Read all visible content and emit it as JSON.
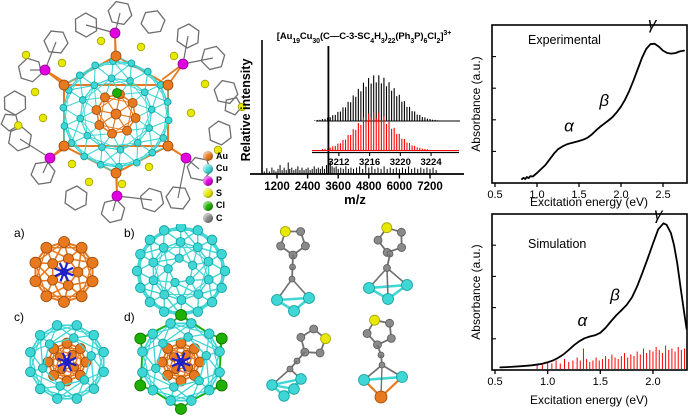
{
  "colors": {
    "au": "#E8791E",
    "cu": "#3FD6D6",
    "p": "#E000E0",
    "s": "#E8E800",
    "cl": "#1FAF00",
    "c": "#8A8A8A",
    "core_blue": "#2020C8",
    "series_red": "#FF0000",
    "series_black": "#000000"
  },
  "panel_a": {
    "legend": [
      {
        "label": "Au",
        "color_key": "au"
      },
      {
        "label": "Cu",
        "color_key": "cu"
      },
      {
        "label": "P",
        "color_key": "p"
      },
      {
        "label": "S",
        "color_key": "s"
      },
      {
        "label": "Cl",
        "color_key": "cl"
      },
      {
        "label": "C",
        "color_key": "c"
      }
    ]
  },
  "panel_labels": {
    "a": "a)",
    "b": "b)",
    "c": "c)",
    "d": "d)"
  },
  "mass_spec": {
    "formula_plain": "[Au19Cu30(C—C-3-SC4H3)22(Ph3P)6Cl2]3+",
    "formula_segments": [
      {
        "t": "txt",
        "v": "[Au"
      },
      {
        "t": "sub",
        "v": "19"
      },
      {
        "t": "txt",
        "v": "Cu"
      },
      {
        "t": "sub",
        "v": "30"
      },
      {
        "t": "txt",
        "v": "(C—C-3-SC"
      },
      {
        "t": "sub",
        "v": "4"
      },
      {
        "t": "txt",
        "v": "H"
      },
      {
        "t": "sub",
        "v": "3"
      },
      {
        "t": "txt",
        "v": ")"
      },
      {
        "t": "sub",
        "v": "22"
      },
      {
        "t": "txt",
        "v": "(Ph"
      },
      {
        "t": "sub",
        "v": "3"
      },
      {
        "t": "txt",
        "v": "P)"
      },
      {
        "t": "sub",
        "v": "6"
      },
      {
        "t": "txt",
        "v": "Cl"
      },
      {
        "t": "sub",
        "v": "2"
      },
      {
        "t": "txt",
        "v": "]"
      },
      {
        "t": "sup",
        "v": "3+"
      }
    ]
  },
  "chart_data": [
    {
      "type": "bar",
      "xlabel": "m/z",
      "ylabel": "Relative intensity",
      "xticks": [
        "1200",
        "2400",
        "3600",
        "4800",
        "6000",
        "7200"
      ],
      "xlim": [
        600,
        7800
      ],
      "main_peak": {
        "mz": 3216,
        "rel": 1.0
      },
      "noise_peaks": [
        [
          700,
          0.02
        ],
        [
          800,
          0.045
        ],
        [
          900,
          0.02
        ],
        [
          1000,
          0.05
        ],
        [
          1080,
          0.03
        ],
        [
          1160,
          0.02
        ],
        [
          1240,
          0.04
        ],
        [
          1320,
          0.07
        ],
        [
          1400,
          0.03
        ],
        [
          1480,
          0.05
        ],
        [
          1560,
          0.03
        ],
        [
          1640,
          0.09
        ],
        [
          1700,
          0.04
        ],
        [
          1780,
          0.05
        ],
        [
          1860,
          0.03
        ],
        [
          1940,
          0.04
        ],
        [
          2020,
          0.06
        ],
        [
          2100,
          0.03
        ],
        [
          2180,
          0.05
        ],
        [
          2260,
          0.03
        ],
        [
          2340,
          0.04
        ],
        [
          2420,
          0.05
        ],
        [
          2500,
          0.03
        ],
        [
          2580,
          0.04
        ],
        [
          2660,
          0.06
        ],
        [
          2740,
          0.04
        ],
        [
          2820,
          0.05
        ],
        [
          2900,
          0.04
        ],
        [
          2980,
          0.06
        ],
        [
          3060,
          0.04
        ],
        [
          3140,
          0.07
        ],
        [
          3290,
          0.1
        ],
        [
          3360,
          0.06
        ],
        [
          3440,
          0.05
        ],
        [
          3520,
          0.06
        ],
        [
          3600,
          0.04
        ],
        [
          3700,
          0.05
        ],
        [
          3800,
          0.04
        ],
        [
          3900,
          0.06
        ],
        [
          4000,
          0.04
        ],
        [
          4100,
          0.05
        ],
        [
          4200,
          0.04
        ],
        [
          4320,
          0.05
        ],
        [
          4440,
          0.06
        ],
        [
          4560,
          0.04
        ],
        [
          4680,
          0.07
        ],
        [
          4800,
          0.05
        ],
        [
          4920,
          0.06
        ],
        [
          5040,
          0.04
        ],
        [
          5160,
          0.05
        ],
        [
          5280,
          0.04
        ],
        [
          5400,
          0.06
        ],
        [
          5520,
          0.04
        ],
        [
          5640,
          0.05
        ],
        [
          5760,
          0.04
        ],
        [
          5880,
          0.05
        ],
        [
          6000,
          0.04
        ],
        [
          6120,
          0.05
        ],
        [
          6240,
          0.04
        ],
        [
          6360,
          0.06
        ],
        [
          6480,
          0.04
        ],
        [
          6600,
          0.05
        ],
        [
          6720,
          0.04
        ],
        [
          6840,
          0.05
        ],
        [
          6960,
          0.04
        ],
        [
          7080,
          0.05
        ],
        [
          7200,
          0.04
        ],
        [
          7320,
          0.05
        ],
        [
          7440,
          0.03
        ]
      ],
      "inset": {
        "xticks": [
          "3212",
          "3216",
          "3220",
          "3224"
        ],
        "xlim": [
          3208,
          3227
        ],
        "series": [
          {
            "color": "#000000",
            "center": 3216.9,
            "sigma": 2.8,
            "spacing": 0.3333
          },
          {
            "color": "#FF0000",
            "center": 3216.6,
            "sigma": 2.5,
            "spacing": 0.3333
          }
        ]
      }
    },
    {
      "type": "line",
      "title": "Experimental",
      "xlabel": "Excitation energy (eV)",
      "ylabel": "Absorbance (a.u.)",
      "xticks": [
        "0.5",
        "1.0",
        "1.5",
        "2.0",
        "2.5"
      ],
      "xlim": [
        0.5,
        2.78
      ],
      "points": [
        [
          0.82,
          0.012
        ],
        [
          0.84,
          0.02
        ],
        [
          0.86,
          0.012
        ],
        [
          0.88,
          0.025
        ],
        [
          0.9,
          0.018
        ],
        [
          0.92,
          0.03
        ],
        [
          0.95,
          0.028
        ],
        [
          1.0,
          0.05
        ],
        [
          1.05,
          0.075
        ],
        [
          1.1,
          0.1
        ],
        [
          1.15,
          0.135
        ],
        [
          1.2,
          0.17
        ],
        [
          1.25,
          0.198
        ],
        [
          1.3,
          0.215
        ],
        [
          1.35,
          0.228
        ],
        [
          1.4,
          0.236
        ],
        [
          1.45,
          0.243
        ],
        [
          1.5,
          0.25
        ],
        [
          1.55,
          0.258
        ],
        [
          1.6,
          0.27
        ],
        [
          1.65,
          0.29
        ],
        [
          1.7,
          0.315
        ],
        [
          1.75,
          0.338
        ],
        [
          1.8,
          0.358
        ],
        [
          1.85,
          0.378
        ],
        [
          1.9,
          0.4
        ],
        [
          1.95,
          0.43
        ],
        [
          2.0,
          0.465
        ],
        [
          2.05,
          0.51
        ],
        [
          2.1,
          0.565
        ],
        [
          2.15,
          0.63
        ],
        [
          2.2,
          0.7
        ],
        [
          2.25,
          0.77
        ],
        [
          2.3,
          0.825
        ],
        [
          2.35,
          0.855
        ],
        [
          2.4,
          0.858
        ],
        [
          2.45,
          0.84
        ],
        [
          2.5,
          0.815
        ],
        [
          2.55,
          0.8
        ],
        [
          2.6,
          0.796
        ],
        [
          2.65,
          0.8
        ],
        [
          2.7,
          0.81
        ],
        [
          2.75,
          0.815
        ]
      ],
      "annotations": [
        {
          "text": "α",
          "x": 1.38,
          "y": 0.31
        },
        {
          "text": "β",
          "x": 1.8,
          "y": 0.47
        },
        {
          "text": "γ",
          "x": 2.37,
          "y": 0.95
        }
      ]
    },
    {
      "type": "line",
      "title": "Simulation",
      "xlabel": "Excitation energy (eV)",
      "ylabel": "Absorbance (a.u.)",
      "xticks": [
        "0.5",
        "1.0",
        "1.5",
        "2.0"
      ],
      "xlim": [
        0.5,
        2.32
      ],
      "points": [
        [
          0.55,
          0.004
        ],
        [
          0.65,
          0.007
        ],
        [
          0.75,
          0.012
        ],
        [
          0.85,
          0.018
        ],
        [
          0.95,
          0.028
        ],
        [
          1.0,
          0.038
        ],
        [
          1.05,
          0.05
        ],
        [
          1.1,
          0.068
        ],
        [
          1.15,
          0.09
        ],
        [
          1.2,
          0.12
        ],
        [
          1.25,
          0.152
        ],
        [
          1.3,
          0.178
        ],
        [
          1.35,
          0.198
        ],
        [
          1.4,
          0.21
        ],
        [
          1.45,
          0.218
        ],
        [
          1.5,
          0.235
        ],
        [
          1.55,
          0.268
        ],
        [
          1.6,
          0.31
        ],
        [
          1.65,
          0.35
        ],
        [
          1.7,
          0.385
        ],
        [
          1.75,
          0.42
        ],
        [
          1.8,
          0.47
        ],
        [
          1.85,
          0.545
        ],
        [
          1.9,
          0.635
        ],
        [
          1.95,
          0.73
        ],
        [
          2.0,
          0.83
        ],
        [
          2.05,
          0.925
        ],
        [
          2.1,
          0.965
        ],
        [
          2.13,
          0.955
        ],
        [
          2.17,
          0.9
        ],
        [
          2.2,
          0.82
        ],
        [
          2.23,
          0.7
        ],
        [
          2.26,
          0.55
        ],
        [
          2.29,
          0.4
        ],
        [
          2.32,
          0.26
        ]
      ],
      "sticks_color": "#FF0000",
      "sticks": [
        [
          0.9,
          0.03
        ],
        [
          0.95,
          0.02
        ],
        [
          1.0,
          0.04
        ],
        [
          1.04,
          0.03
        ],
        [
          1.08,
          0.05
        ],
        [
          1.12,
          0.03
        ],
        [
          1.16,
          0.06
        ],
        [
          1.2,
          0.04
        ],
        [
          1.24,
          0.05
        ],
        [
          1.28,
          0.07
        ],
        [
          1.31,
          0.05
        ],
        [
          1.34,
          0.13
        ],
        [
          1.37,
          0.06
        ],
        [
          1.4,
          0.04
        ],
        [
          1.43,
          0.05
        ],
        [
          1.46,
          0.07
        ],
        [
          1.49,
          0.05
        ],
        [
          1.52,
          0.06
        ],
        [
          1.55,
          0.08
        ],
        [
          1.58,
          0.06
        ],
        [
          1.61,
          0.09
        ],
        [
          1.64,
          0.07
        ],
        [
          1.67,
          0.06
        ],
        [
          1.7,
          0.08
        ],
        [
          1.73,
          0.1
        ],
        [
          1.76,
          0.07
        ],
        [
          1.79,
          0.09
        ],
        [
          1.82,
          0.08
        ],
        [
          1.85,
          0.11
        ],
        [
          1.88,
          0.09
        ],
        [
          1.91,
          0.13
        ],
        [
          1.94,
          0.1
        ],
        [
          1.97,
          0.12
        ],
        [
          2.0,
          0.11
        ],
        [
          2.03,
          0.14
        ],
        [
          2.06,
          0.12
        ],
        [
          2.09,
          0.1
        ],
        [
          2.12,
          0.15
        ],
        [
          2.15,
          0.12
        ],
        [
          2.18,
          0.13
        ],
        [
          2.21,
          0.11
        ],
        [
          2.24,
          0.14
        ],
        [
          2.27,
          0.12
        ],
        [
          2.3,
          0.13
        ]
      ],
      "annotations": [
        {
          "text": "α",
          "x": 1.33,
          "y": 0.28
        },
        {
          "text": "β",
          "x": 1.64,
          "y": 0.45
        },
        {
          "text": "γ",
          "x": 2.05,
          "y": 0.99
        }
      ]
    }
  ]
}
